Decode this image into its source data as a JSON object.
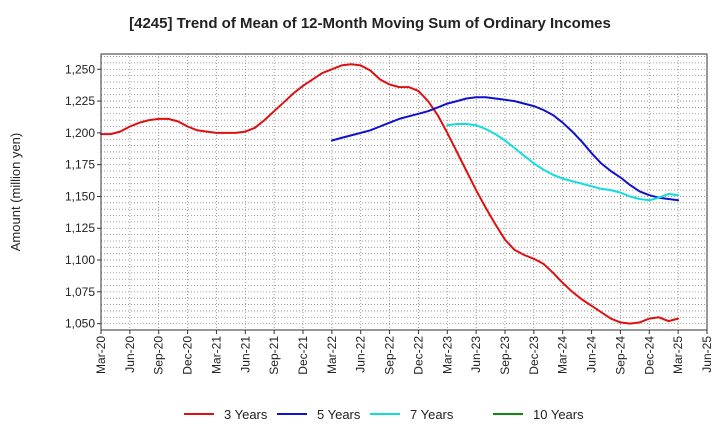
{
  "chart_data": {
    "type": "line",
    "title": "[4245]  Trend of Mean of 12-Month Moving Sum of Ordinary Incomes",
    "xlabel": "",
    "ylabel": "Amount (million yen)",
    "ylim": [
      1045,
      1262
    ],
    "yticks": [
      1050,
      1075,
      1100,
      1125,
      1150,
      1175,
      1200,
      1225,
      1250
    ],
    "ytick_labels": [
      "1,050",
      "1,075",
      "1,100",
      "1,125",
      "1,150",
      "1,175",
      "1,200",
      "1,225",
      "1,250"
    ],
    "x_tick_labels": [
      "Mar-20",
      "Jun-20",
      "Sep-20",
      "Dec-20",
      "Mar-21",
      "Jun-21",
      "Sep-21",
      "Dec-21",
      "Mar-22",
      "Jun-22",
      "Sep-22",
      "Dec-22",
      "Mar-23",
      "Jun-23",
      "Sep-23",
      "Dec-23",
      "Mar-24",
      "Jun-24",
      "Sep-24",
      "Dec-24",
      "Mar-25",
      "Jun-25"
    ],
    "x_unit": "months since Mar-20",
    "xlim": [
      0,
      63
    ],
    "grid": true,
    "legend_position": "bottom",
    "series": [
      {
        "name": "3 Years",
        "color": "#dd1111",
        "x": [
          0,
          1,
          2,
          3,
          4,
          5,
          6,
          7,
          8,
          9,
          10,
          11,
          12,
          13,
          14,
          15,
          16,
          17,
          18,
          19,
          20,
          21,
          22,
          23,
          24,
          25,
          26,
          27,
          28,
          29,
          30,
          31,
          32,
          33,
          34,
          35,
          36,
          37,
          38,
          39,
          40,
          41,
          42,
          43,
          44,
          45,
          46,
          47,
          48,
          49,
          50,
          51,
          52,
          53,
          54,
          55,
          56,
          57,
          58,
          59,
          60
        ],
        "values": [
          1199,
          1199,
          1201,
          1205,
          1208,
          1210,
          1211,
          1211,
          1209,
          1205,
          1202,
          1201,
          1200,
          1200,
          1200,
          1201,
          1204,
          1210,
          1217,
          1224,
          1231,
          1237,
          1242,
          1247,
          1250,
          1253,
          1254,
          1253,
          1249,
          1242,
          1238,
          1236,
          1236,
          1233,
          1225,
          1214,
          1200,
          1185,
          1170,
          1155,
          1141,
          1128,
          1116,
          1108,
          1104,
          1101,
          1097,
          1090,
          1082,
          1075,
          1069,
          1064,
          1059,
          1054,
          1051,
          1050,
          1051,
          1054,
          1055,
          1052,
          1054
        ]
      },
      {
        "name": "5 Years",
        "color": "#1111cc",
        "x": [
          24,
          25,
          26,
          27,
          28,
          29,
          30,
          31,
          32,
          33,
          34,
          35,
          36,
          37,
          38,
          39,
          40,
          41,
          42,
          43,
          44,
          45,
          46,
          47,
          48,
          49,
          50,
          51,
          52,
          53,
          54,
          55,
          56,
          57,
          58,
          59,
          60
        ],
        "values": [
          1194,
          1196,
          1198,
          1200,
          1202,
          1205,
          1208,
          1211,
          1213,
          1215,
          1217,
          1220,
          1223,
          1225,
          1227,
          1228,
          1228,
          1227,
          1226,
          1225,
          1223,
          1221,
          1218,
          1214,
          1208,
          1201,
          1193,
          1184,
          1176,
          1170,
          1165,
          1159,
          1154,
          1151,
          1149,
          1148,
          1147
        ]
      },
      {
        "name": "7 Years",
        "color": "#11dddd",
        "x": [
          36,
          37,
          38,
          39,
          40,
          41,
          42,
          43,
          44,
          45,
          46,
          47,
          48,
          49,
          50,
          51,
          52,
          53,
          54,
          55,
          56,
          57,
          58,
          59,
          60
        ],
        "values": [
          1206,
          1207,
          1207,
          1206,
          1203,
          1199,
          1194,
          1188,
          1182,
          1176,
          1171,
          1167,
          1164,
          1162,
          1160,
          1158,
          1156,
          1155,
          1153,
          1150,
          1148,
          1147,
          1149,
          1152,
          1151
        ]
      },
      {
        "name": "10 Years",
        "color": "#118811",
        "x": [],
        "values": []
      }
    ]
  }
}
